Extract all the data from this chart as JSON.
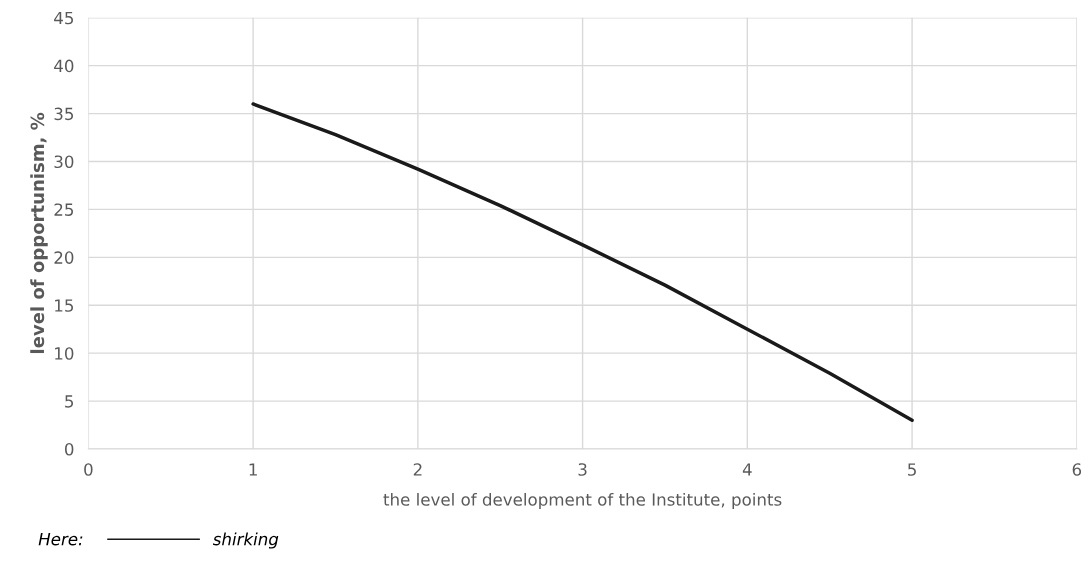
{
  "chart_data": {
    "type": "line",
    "xlabel": "the level of development of the Institute, points",
    "ylabel": "level of opportunism, %",
    "legend_title": "Here:",
    "series": [
      {
        "name": "shirking",
        "color": "#1a1a1a",
        "x": [
          1,
          1.5,
          2,
          2.5,
          3,
          3.5,
          4,
          4.5,
          5
        ],
        "values": [
          36,
          32.8,
          29.2,
          25.4,
          21.3,
          17.1,
          12.5,
          7.9,
          3
        ]
      }
    ],
    "xlim": [
      0,
      6
    ],
    "xticks": [
      0,
      1,
      2,
      3,
      4,
      5,
      6
    ],
    "ylim": [
      0,
      45
    ],
    "yticks": [
      0,
      5,
      10,
      15,
      20,
      25,
      30,
      35,
      40,
      45
    ],
    "grid": true,
    "legend": "bottom left",
    "marker": "none",
    "line_style": "solid"
  }
}
